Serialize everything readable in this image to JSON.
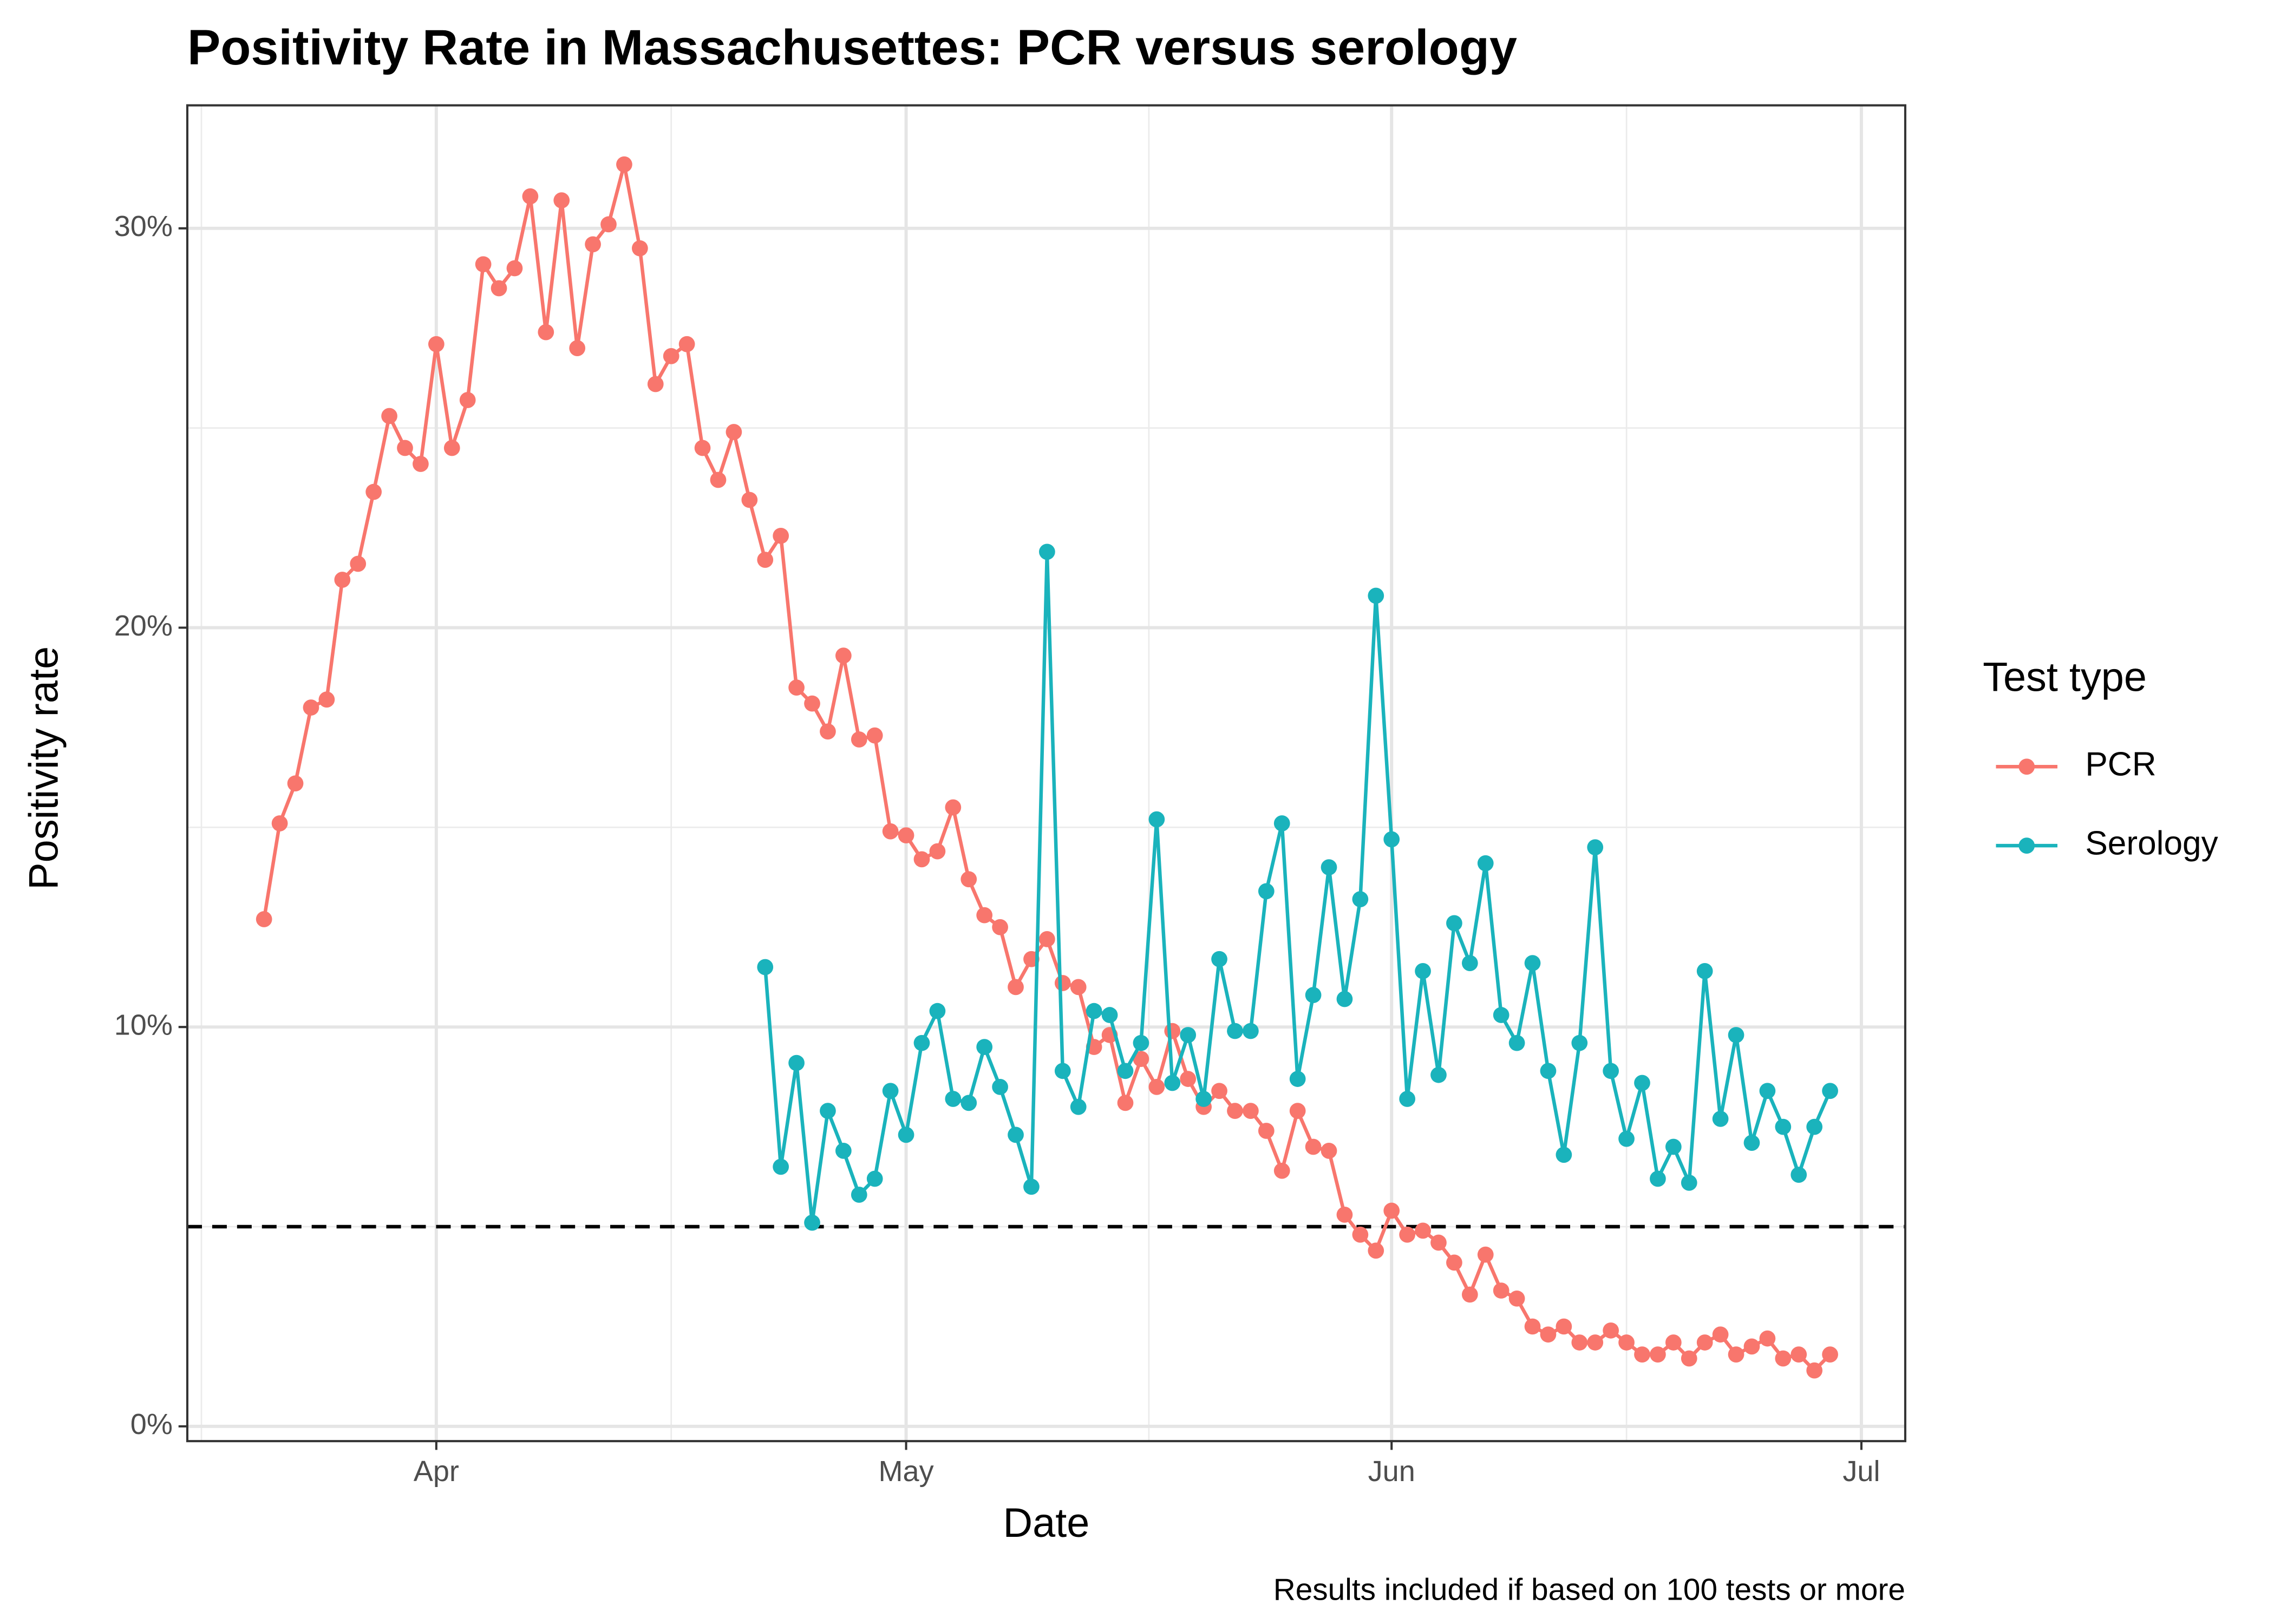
{
  "chart_data": {
    "type": "line",
    "title": "Positivity Rate in Massachusettes: PCR versus serology",
    "x_label": "Date",
    "y_label": "Positivity rate",
    "caption": "Results included if based on 100 tests or more",
    "legend_title": "Test type",
    "legend_position": "right",
    "grid": true,
    "x": [
      81,
      82,
      83,
      84,
      85,
      86,
      87,
      88,
      89,
      90,
      91,
      92,
      93,
      94,
      95,
      96,
      97,
      98,
      99,
      100,
      101,
      102,
      103,
      104,
      105,
      106,
      107,
      108,
      109,
      110,
      111,
      112,
      113,
      114,
      115,
      116,
      117,
      118,
      119,
      120,
      121,
      122,
      123,
      124,
      125,
      126,
      127,
      128,
      129,
      130,
      131,
      132,
      133,
      134,
      135,
      136,
      137,
      138,
      139,
      140,
      141,
      142,
      143,
      144,
      145,
      146,
      147,
      148,
      149,
      150,
      151,
      152,
      153,
      154,
      155,
      156,
      157,
      158,
      159,
      160,
      161,
      162,
      163,
      164,
      165,
      166,
      167,
      168,
      169,
      170,
      171,
      172,
      173,
      174,
      175,
      176,
      177,
      178,
      179,
      180,
      181
    ],
    "xlim": [
      76.1,
      185.8
    ],
    "xticks": [
      {
        "value": 92,
        "label": "Apr"
      },
      {
        "value": 122,
        "label": "May"
      },
      {
        "value": 153,
        "label": "Jun"
      },
      {
        "value": 183,
        "label": "Jul"
      }
    ],
    "ylim": [
      -0.37,
      33.08
    ],
    "yticks": [
      {
        "value": 0,
        "label": "0%"
      },
      {
        "value": 10,
        "label": "10%"
      },
      {
        "value": 20,
        "label": "20%"
      },
      {
        "value": 30,
        "label": "30%"
      }
    ],
    "hline": 5,
    "series": [
      {
        "name": "PCR",
        "color": "#F8766D",
        "values": [
          12.7,
          15.1,
          16.1,
          18.0,
          18.2,
          21.2,
          21.6,
          23.4,
          25.3,
          24.5,
          24.1,
          27.1,
          24.5,
          25.7,
          29.1,
          28.5,
          29.0,
          30.8,
          27.4,
          30.7,
          27.0,
          29.6,
          30.1,
          31.6,
          29.5,
          26.1,
          26.8,
          27.1,
          24.5,
          23.7,
          24.9,
          23.2,
          21.7,
          22.3,
          18.5,
          18.1,
          17.4,
          19.3,
          17.2,
          17.3,
          14.9,
          14.8,
          14.2,
          14.4,
          15.5,
          13.7,
          12.8,
          12.5,
          11.0,
          11.7,
          12.2,
          11.1,
          11.0,
          9.5,
          9.8,
          8.1,
          9.2,
          8.5,
          9.9,
          8.7,
          8.0,
          8.4,
          7.9,
          7.9,
          7.4,
          6.4,
          7.9,
          7.0,
          6.9,
          5.3,
          4.8,
          4.4,
          5.4,
          4.8,
          4.9,
          4.6,
          4.1,
          3.3,
          4.3,
          3.4,
          3.2,
          2.5,
          2.3,
          2.5,
          2.1,
          2.1,
          2.4,
          2.1,
          1.8,
          1.8,
          2.1,
          1.7,
          2.1,
          2.3,
          1.8,
          2.0,
          2.2,
          1.7,
          1.8,
          1.4,
          1.8
        ]
      },
      {
        "name": "Serology",
        "color": "#1AB3BC",
        "values": [
          null,
          null,
          null,
          null,
          null,
          null,
          null,
          null,
          null,
          null,
          null,
          null,
          null,
          null,
          null,
          null,
          null,
          null,
          null,
          null,
          null,
          null,
          null,
          null,
          null,
          null,
          null,
          null,
          null,
          null,
          null,
          null,
          11.5,
          6.5,
          9.1,
          5.1,
          7.9,
          6.9,
          5.8,
          6.2,
          8.4,
          7.3,
          9.6,
          10.4,
          8.2,
          8.1,
          9.5,
          8.5,
          7.3,
          6.0,
          21.9,
          8.9,
          8.0,
          10.4,
          10.3,
          8.9,
          9.6,
          15.2,
          8.6,
          9.8,
          8.2,
          11.7,
          9.9,
          9.9,
          13.4,
          15.1,
          8.7,
          10.8,
          14.0,
          10.7,
          13.2,
          20.8,
          14.7,
          8.2,
          11.4,
          8.8,
          12.6,
          11.6,
          14.1,
          10.3,
          9.6,
          11.6,
          8.9,
          6.8,
          9.6,
          14.5,
          8.9,
          7.2,
          8.6,
          6.2,
          7.0,
          6.1,
          11.4,
          7.7,
          9.8,
          7.1,
          8.4,
          7.5,
          6.3,
          7.5,
          8.4
        ]
      }
    ]
  }
}
